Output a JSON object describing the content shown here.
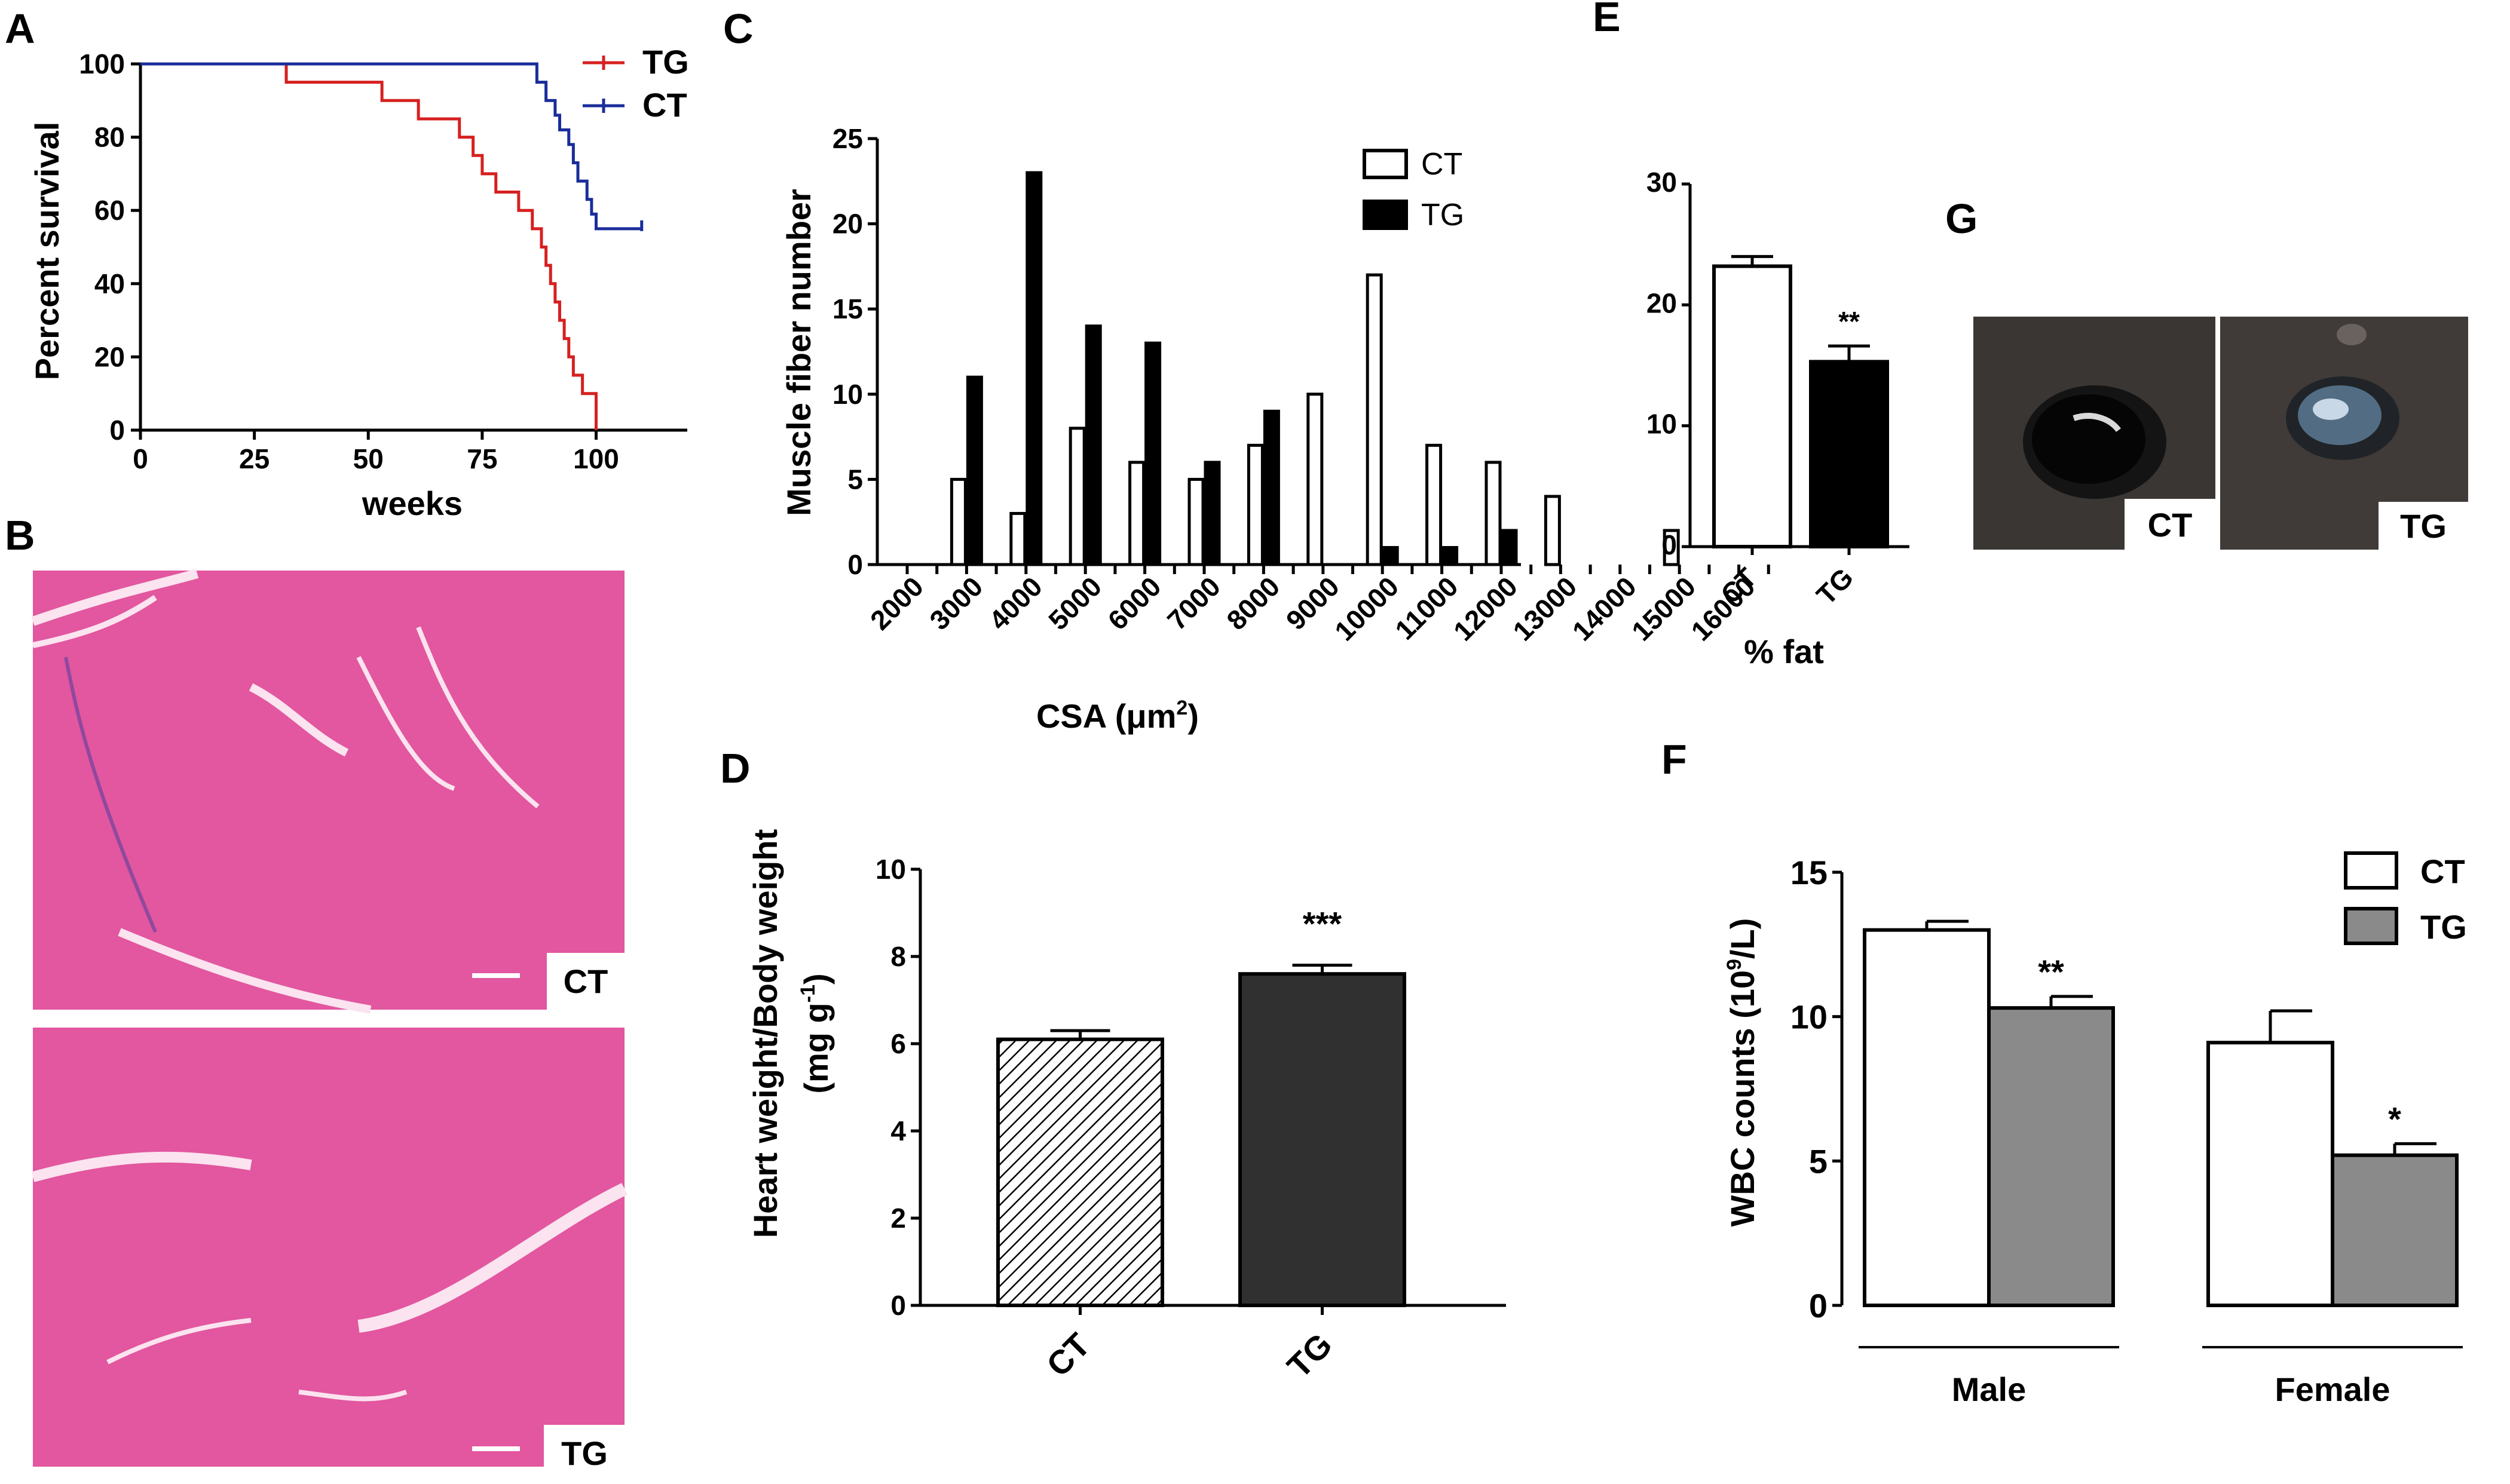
{
  "panels": {
    "A": "A",
    "B": "B",
    "C": "C",
    "D": "D",
    "E": "E",
    "F": "F",
    "G": "G"
  },
  "colors": {
    "tg_line": "#d62020",
    "ct_line": "#1a2d9a",
    "he_stain": "#e2579f",
    "grey_bar": "#8a8a8a",
    "dark_bar": "#303030"
  },
  "images": {
    "B_top_label": "CT",
    "B_bottom_label": "TG",
    "G_left_label": "CT",
    "G_right_label": "TG"
  },
  "chart_data": [
    {
      "panel": "A",
      "type": "line",
      "xlabel": "weeks",
      "ylabel": "Percent survival",
      "xlim": [
        0,
        120
      ],
      "ylim": [
        0,
        100
      ],
      "xticks": [
        "0",
        "25",
        "50",
        "75",
        "100"
      ],
      "yticks": [
        "0",
        "20",
        "40",
        "60",
        "80",
        "100"
      ],
      "legend": "top-right",
      "series": [
        {
          "name": "TG",
          "step": true,
          "x": [
            0,
            32,
            32,
            53,
            53,
            61,
            61,
            70,
            70,
            73,
            73,
            75,
            75,
            78,
            78,
            83,
            83,
            86,
            86,
            88,
            88,
            89,
            89,
            90,
            90,
            91,
            91,
            92,
            92,
            93,
            93,
            94,
            94,
            95,
            95,
            97,
            97,
            100,
            100
          ],
          "y": [
            100,
            100,
            95,
            95,
            90,
            90,
            85,
            85,
            80,
            80,
            75,
            75,
            70,
            70,
            65,
            65,
            60,
            60,
            55,
            55,
            50,
            50,
            45,
            45,
            40,
            40,
            35,
            35,
            30,
            30,
            25,
            25,
            20,
            20,
            15,
            15,
            10,
            10,
            0
          ]
        },
        {
          "name": "CT",
          "step": true,
          "x": [
            0,
            87,
            87,
            89,
            89,
            91,
            91,
            92,
            92,
            94,
            94,
            95,
            95,
            96,
            96,
            98,
            98,
            99,
            99,
            100,
            100,
            110
          ],
          "y": [
            100,
            100,
            95,
            95,
            90,
            90,
            86,
            86,
            82,
            82,
            78,
            78,
            73,
            73,
            68,
            68,
            63,
            63,
            59,
            59,
            55,
            55
          ]
        }
      ]
    },
    {
      "panel": "C",
      "type": "bar",
      "xlabel": "CSA (μm²)",
      "xlabel_main": "CSA (",
      "xlabel_unit": "μm",
      "xlabel_sup": "2",
      "xlabel_close": ")",
      "ylabel": "Muscle fiber number",
      "ylim": [
        0,
        25
      ],
      "yticks": [
        "0",
        "5",
        "10",
        "15",
        "20",
        "25"
      ],
      "categories": [
        "2000",
        "3000",
        "4000",
        "5000",
        "6000",
        "7000",
        "8000",
        "9000",
        "10000",
        "11000",
        "12000",
        "13000",
        "14000",
        "15000",
        "16000"
      ],
      "legend": "top-right",
      "series": [
        {
          "name": "CT",
          "values": [
            null,
            5,
            3,
            8,
            6,
            5,
            7,
            10,
            17,
            7,
            6,
            4,
            0,
            2,
            null
          ]
        },
        {
          "name": "TG",
          "values": [
            null,
            11,
            23,
            14,
            13,
            6,
            9,
            0,
            1,
            1,
            2,
            0,
            0,
            0,
            null
          ]
        }
      ]
    },
    {
      "panel": "D",
      "type": "bar",
      "ylabel": "Heart weight/Body weight",
      "ylabel2_main": "(mg g",
      "ylabel2_sup": "-1",
      "ylabel2_close": ")",
      "ylim": [
        0,
        10
      ],
      "yticks": [
        "0",
        "2",
        "4",
        "6",
        "8",
        "10"
      ],
      "categories": [
        "CT",
        "TG"
      ],
      "values": [
        6.1,
        7.6
      ],
      "errors": [
        0.2,
        0.2
      ],
      "annotations": [
        "",
        "***"
      ]
    },
    {
      "panel": "E",
      "type": "bar",
      "xlabel": "% fat",
      "ylim": [
        0,
        30
      ],
      "yticks": [
        "0",
        "10",
        "20",
        "30"
      ],
      "categories": [
        "CT",
        "TG"
      ],
      "values": [
        23.2,
        15.3
      ],
      "errors": [
        0.8,
        1.3
      ],
      "annotations": [
        "",
        "**"
      ]
    },
    {
      "panel": "F",
      "type": "bar",
      "ylabel_main": "WBC counts (10",
      "ylabel_sup": "9",
      "ylabel_close": "/L)",
      "ylim": [
        0,
        15
      ],
      "yticks": [
        "0",
        "5",
        "10",
        "15"
      ],
      "categories": [
        "Male",
        "Female"
      ],
      "legend": "top-right",
      "series": [
        {
          "name": "CT",
          "values": [
            13.0,
            9.1
          ],
          "errors": [
            0.3,
            1.1
          ]
        },
        {
          "name": "TG",
          "values": [
            10.3,
            5.2
          ],
          "errors": [
            0.4,
            0.4
          ]
        }
      ],
      "annotations": [
        "**",
        "*"
      ]
    }
  ]
}
